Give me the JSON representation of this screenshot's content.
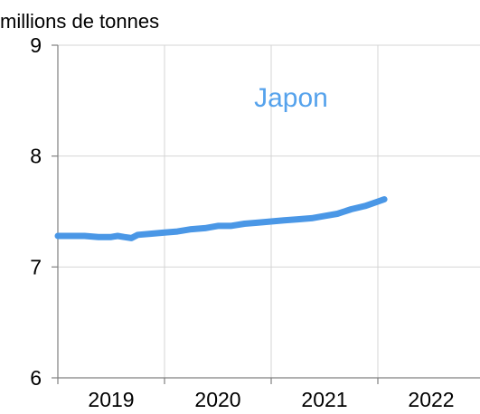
{
  "chart_data": {
    "type": "line",
    "title": "",
    "ylabel": "millions de tonnes",
    "xlabel": "",
    "annotation": "Japon",
    "ylim": [
      6,
      9
    ],
    "yticks": [
      6,
      7,
      8,
      9
    ],
    "xlim": [
      2018,
      2022
    ],
    "xticks": [
      2018,
      2019,
      2020,
      2021,
      2022
    ],
    "xtick_labels": [
      "2019",
      "2020",
      "2021",
      "2022"
    ],
    "grid": true,
    "colors": {
      "series": "#4a97e6",
      "annotation": "#55a2ec"
    },
    "series": [
      {
        "x": [
          2018.0,
          2018.12,
          2018.25,
          2018.38,
          2018.5,
          2018.56,
          2018.62,
          2018.69,
          2018.75,
          2018.88,
          2019.0,
          2019.12,
          2019.25,
          2019.38,
          2019.5,
          2019.62,
          2019.75,
          2019.88,
          2020.0,
          2020.12,
          2020.25,
          2020.38,
          2020.5,
          2020.62,
          2020.75,
          2020.88,
          2021.0,
          2021.06
        ],
        "y": [
          7.28,
          7.28,
          7.28,
          7.27,
          7.27,
          7.28,
          7.27,
          7.26,
          7.29,
          7.3,
          7.31,
          7.32,
          7.34,
          7.35,
          7.37,
          7.37,
          7.39,
          7.4,
          7.41,
          7.42,
          7.43,
          7.44,
          7.46,
          7.48,
          7.52,
          7.55,
          7.59,
          7.61
        ]
      }
    ]
  }
}
